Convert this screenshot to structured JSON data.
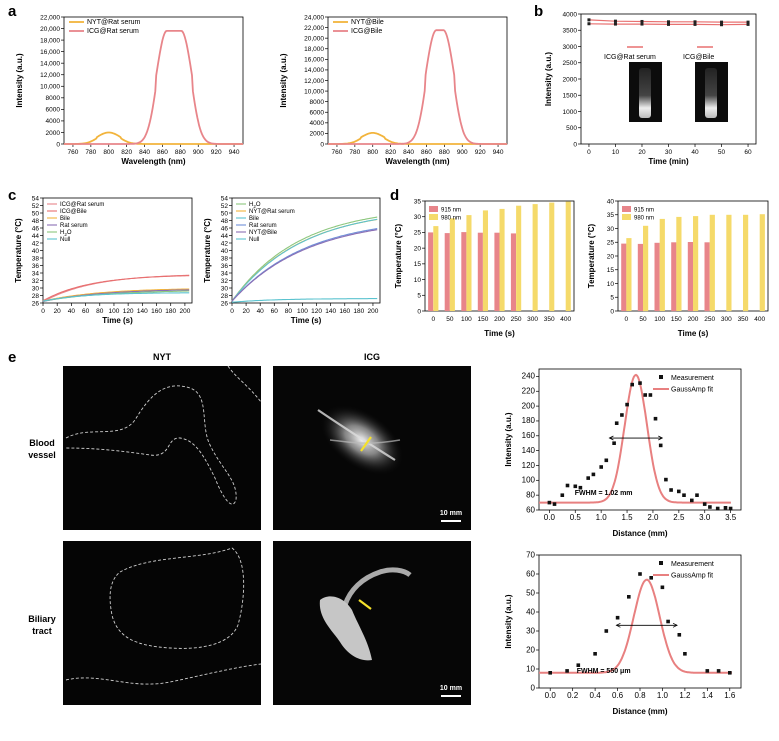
{
  "panel_letters": {
    "a": "a",
    "b": "b",
    "c": "c",
    "d": "d",
    "e": "e"
  },
  "colors": {
    "orange": "#F2B43C",
    "red": "#E8858A",
    "red_line": "#E87070",
    "yellow_bar": "#F5DA6A",
    "pink_bar": "#E8858A",
    "fit": "#E88080",
    "green": "#8DC77E",
    "blue": "#6F8FD8",
    "purple": "#8A6FB5",
    "cyan": "#5BC3CF",
    "gray": "#8E8E8E"
  },
  "chart_data": [
    {
      "id": "a1",
      "type": "line",
      "xlabel": "Wavelength (nm)",
      "ylabel": "Intensity (a.u.)",
      "xlim": [
        750,
        950
      ],
      "ylim": [
        0,
        22000
      ],
      "xticks": [
        760,
        780,
        800,
        820,
        840,
        860,
        880,
        900,
        920,
        940
      ],
      "yticks": [
        0,
        2000,
        4000,
        6000,
        8000,
        10000,
        12000,
        14000,
        16000,
        18000,
        20000,
        22000
      ],
      "ytick_labels": [
        "0",
        "2000",
        "4000",
        "6000",
        "8000",
        "10,000",
        "12,000",
        "14,000",
        "16,000",
        "18,000",
        "20,000",
        "22,000"
      ],
      "legend": "top-left",
      "series": [
        {
          "name": "NYT@Rat serum",
          "color_key": "orange",
          "peaks": [
            {
              "center": 800,
              "sigma": 13,
              "height": 2000
            }
          ]
        },
        {
          "name": "ICG@Rat serum",
          "color_key": "red",
          "peaks": [
            {
              "center": 873,
              "sigma": 12,
              "height": 19600,
              "flat": 8
            }
          ]
        }
      ]
    },
    {
      "id": "a2",
      "type": "line",
      "xlabel": "Wavelength (nm)",
      "ylabel": "Intensity (a.u.)",
      "xlim": [
        750,
        950
      ],
      "ylim": [
        0,
        24000
      ],
      "xticks": [
        760,
        780,
        800,
        820,
        840,
        860,
        880,
        900,
        920,
        940
      ],
      "yticks": [
        0,
        2000,
        4000,
        6000,
        8000,
        10000,
        12000,
        14000,
        16000,
        18000,
        20000,
        22000,
        24000
      ],
      "ytick_labels": [
        "0",
        "2000",
        "4000",
        "6000",
        "8000",
        "10,000",
        "12,000",
        "14,000",
        "16,000",
        "18,000",
        "20,000",
        "22,000",
        "24,000"
      ],
      "legend": "top-left",
      "series": [
        {
          "name": "NYT@Bile",
          "color_key": "orange",
          "peaks": [
            {
              "center": 800,
              "sigma": 13,
              "height": 2100
            }
          ]
        },
        {
          "name": "ICG@Bile",
          "color_key": "red",
          "peaks": [
            {
              "center": 875,
              "sigma": 12,
              "height": 21500,
              "flat": 4
            }
          ]
        }
      ]
    },
    {
      "id": "b",
      "type": "line",
      "xlabel": "Time (min)",
      "ylabel": "Intensity (a.u.)",
      "xlim": [
        -3,
        63
      ],
      "ylim": [
        0,
        4000
      ],
      "xticks": [
        0,
        10,
        20,
        30,
        40,
        50,
        60
      ],
      "yticks": [
        0,
        500,
        1000,
        1500,
        2000,
        2500,
        3000,
        3500,
        4000
      ],
      "x": [
        0,
        10,
        20,
        30,
        40,
        50,
        60
      ],
      "series": [
        {
          "name": "ICG@Rat serum",
          "color_key": "red_line",
          "values": [
            3820,
            3780,
            3770,
            3760,
            3760,
            3750,
            3750
          ]
        },
        {
          "name": "ICG@Bile",
          "color_key": "red_line",
          "values": [
            3700,
            3690,
            3690,
            3680,
            3680,
            3670,
            3680
          ]
        }
      ]
    },
    {
      "id": "c1",
      "type": "line",
      "xlabel": "Time (s)",
      "ylabel": "Temperature (°C)",
      "xlim": [
        0,
        210
      ],
      "ylim": [
        26,
        54
      ],
      "xticks": [
        0,
        20,
        40,
        60,
        80,
        100,
        120,
        140,
        160,
        180,
        200
      ],
      "yticks": [
        26,
        28,
        30,
        32,
        34,
        36,
        38,
        40,
        42,
        44,
        46,
        48,
        50,
        52,
        54
      ],
      "legend": "top-left",
      "series": [
        {
          "name": "ICG@Rat serum",
          "color_key": "red",
          "start": 26.3,
          "end": 33.8,
          "tau": 70
        },
        {
          "name": "ICG@Bile",
          "color_key": "red_line",
          "start": 26.6,
          "end": 33.6,
          "tau": 66
        },
        {
          "name": "Bile",
          "color_key": "orange",
          "start": 26.5,
          "end": 30.0,
          "tau": 80
        },
        {
          "name": "Rat serum",
          "color_key": "purple",
          "start": 26.4,
          "end": 29.8,
          "tau": 85
        },
        {
          "name": "H2O",
          "color_key": "green",
          "start": 26.5,
          "end": 29.5,
          "tau": 90
        },
        {
          "name": "Null",
          "color_key": "cyan",
          "start": 26.5,
          "end": 28.8,
          "tau": 60
        }
      ]
    },
    {
      "id": "c2",
      "type": "line",
      "xlabel": "Time (s)",
      "ylabel": "Temperature (°C)",
      "xlim": [
        0,
        210
      ],
      "ylim": [
        26,
        54
      ],
      "xticks": [
        0,
        20,
        40,
        60,
        80,
        100,
        120,
        140,
        160,
        180,
        200
      ],
      "yticks": [
        26,
        28,
        30,
        32,
        34,
        36,
        38,
        40,
        42,
        44,
        46,
        48,
        50,
        52,
        54
      ],
      "legend": "top-left",
      "series": [
        {
          "name": "H2O",
          "color_key": "green",
          "start": 26.5,
          "end": 51.8,
          "tau": 95
        },
        {
          "name": "NYT@Rat serum",
          "color_key": "orange",
          "start": 26.5,
          "end": 51.3,
          "tau": 98
        },
        {
          "name": "Bile",
          "color_key": "cyan",
          "start": 26.5,
          "end": 51.5,
          "tau": 100
        },
        {
          "name": "Rat serum",
          "color_key": "blue",
          "start": 26.5,
          "end": 49.0,
          "tau": 105
        },
        {
          "name": "NYT@Bile",
          "color_key": "purple",
          "start": 26.5,
          "end": 48.8,
          "tau": 107
        },
        {
          "name": "Null",
          "color_key": "cyan",
          "start": 26.2,
          "end": 27.2,
          "tau": 60
        }
      ]
    },
    {
      "id": "d1",
      "type": "bar",
      "xlabel": "Time (s)",
      "ylabel": "Temperature (°C)",
      "ylim": [
        0,
        35
      ],
      "yticks": [
        0,
        5,
        10,
        15,
        20,
        25,
        30,
        35
      ],
      "categories": [
        "0",
        "50",
        "100",
        "150",
        "200",
        "250",
        "300",
        "350",
        "400"
      ],
      "legend": "top-left",
      "series": [
        {
          "name": "915 nm",
          "color_key": "pink_bar",
          "values": [
            25.0,
            24.8,
            25.1,
            24.9,
            24.9,
            24.7,
            null,
            null,
            null
          ]
        },
        {
          "name": "980 nm",
          "color_key": "yellow_bar",
          "values": [
            27.0,
            29.5,
            30.5,
            32.0,
            32.5,
            33.5,
            34.0,
            34.5,
            34.8
          ]
        }
      ]
    },
    {
      "id": "d2",
      "type": "bar",
      "xlabel": "Time (s)",
      "ylabel": "Temperature (°C)",
      "ylim": [
        0,
        40
      ],
      "yticks": [
        0,
        5,
        10,
        15,
        20,
        25,
        30,
        35,
        40
      ],
      "categories": [
        "0",
        "50",
        "100",
        "150",
        "200",
        "250",
        "300",
        "350",
        "400"
      ],
      "legend": "top-left",
      "series": [
        {
          "name": "915 nm",
          "color_key": "pink_bar",
          "values": [
            24.5,
            24.4,
            24.8,
            25.0,
            25.1,
            25.0,
            null,
            null,
            null
          ]
        },
        {
          "name": "980 nm",
          "color_key": "yellow_bar",
          "values": [
            26.5,
            31.0,
            33.5,
            34.2,
            34.5,
            35.0,
            35.0,
            35.0,
            35.2
          ]
        }
      ]
    },
    {
      "id": "e1",
      "type": "scatter",
      "xlabel": "Distance (mm)",
      "ylabel": "Intensity (a.u.)",
      "xlim": [
        -0.2,
        3.7
      ],
      "ylim": [
        60,
        250
      ],
      "xticks": [
        0,
        0.5,
        1,
        1.5,
        2,
        2.5,
        3,
        3.5
      ],
      "xtick_labels": [
        "0.0",
        "0.5",
        "1.0",
        "1.5",
        "2.0",
        "2.5",
        "3.0",
        "3.5"
      ],
      "yticks": [
        60,
        80,
        100,
        120,
        140,
        160,
        180,
        200,
        220,
        240
      ],
      "legend": "top-right",
      "annotation": "FWHM = 1.02 mm",
      "fwhm_y": 157,
      "fwhm_x": [
        1.16,
        2.18
      ],
      "fit": {
        "name": "GaussAmp fit",
        "y0": 70,
        "A": 172,
        "xc": 1.67,
        "w": 0.43
      },
      "measurement": {
        "name": "Measurement",
        "x": [
          0,
          0.1,
          0.25,
          0.35,
          0.5,
          0.6,
          0.75,
          0.85,
          1.0,
          1.1,
          1.25,
          1.3,
          1.4,
          1.5,
          1.6,
          1.75,
          1.85,
          1.95,
          2.05,
          2.15,
          2.25,
          2.35,
          2.5,
          2.6,
          2.75,
          2.85,
          3.0,
          3.1,
          3.25,
          3.4,
          3.5
        ],
        "y": [
          70,
          68,
          80,
          93,
          92,
          90,
          103,
          108,
          118,
          127,
          150,
          177,
          188,
          202,
          229,
          231,
          215,
          215,
          183,
          147,
          101,
          87,
          85,
          80,
          73,
          80,
          68,
          64,
          62,
          63,
          62
        ]
      }
    },
    {
      "id": "e2",
      "type": "scatter",
      "xlabel": "Distance (mm)",
      "ylabel": "Intensity (a.u.)",
      "xlim": [
        -0.1,
        1.7
      ],
      "ylim": [
        0,
        70
      ],
      "xticks": [
        0,
        0.2,
        0.4,
        0.6,
        0.8,
        1.0,
        1.2,
        1.4,
        1.6
      ],
      "xtick_labels": [
        "0.0",
        "0.2",
        "0.4",
        "0.6",
        "0.8",
        "1.0",
        "1.2",
        "1.4",
        "1.6"
      ],
      "yticks": [
        0,
        10,
        20,
        30,
        40,
        50,
        60,
        70
      ],
      "legend": "top-right",
      "annotation": "FWHM = 550 μm",
      "fwhm_y": 33,
      "fwhm_x": [
        0.59,
        1.13
      ],
      "fit": {
        "name": "GaussAmp fit",
        "y0": 8,
        "A": 49,
        "xc": 0.86,
        "w": 0.23
      },
      "measurement": {
        "name": "Measurement",
        "x": [
          0,
          0.15,
          0.25,
          0.4,
          0.5,
          0.6,
          0.7,
          0.8,
          0.9,
          1.0,
          1.05,
          1.15,
          1.2,
          1.4,
          1.5,
          1.6
        ],
        "y": [
          8,
          9,
          12,
          18,
          30,
          37,
          48,
          60,
          58,
          53,
          35,
          28,
          18,
          9,
          9,
          8
        ]
      }
    }
  ],
  "panel_b": {
    "inset_label_1": "ICG@Rat serum",
    "inset_label_2": "ICG@Bile"
  },
  "panel_e": {
    "col_nyt": "NYT",
    "col_icg": "ICG",
    "row_blood_1": "Blood",
    "row_blood_2": "vessel",
    "row_biliary_1": "Biliary",
    "row_biliary_2": "tract",
    "scale_1": "10 mm",
    "scale_2": "10 mm"
  }
}
